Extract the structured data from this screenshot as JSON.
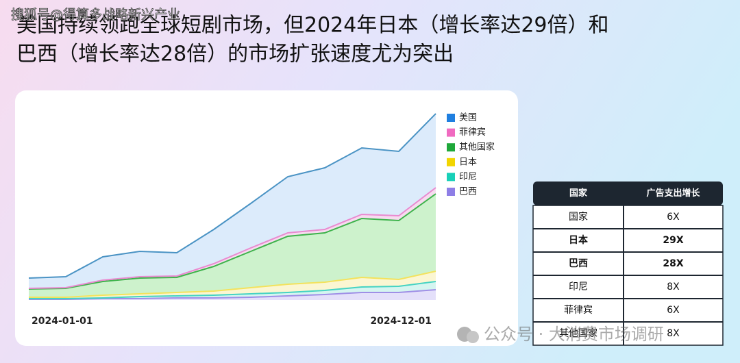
{
  "header": {
    "title": [
      "美国持续领跑全球短剧市场，但2024年日本（增长率达29倍）和",
      "巴西（增长率达28倍）的市场扩张速度尤为突出"
    ]
  },
  "watermark_top": "搜狐号@得算多战略新兴产业",
  "watermark_bottom": "公众号 · 大消费市场调研",
  "chart_data": {
    "type": "stacked-area",
    "categories": [
      "2024-01-01",
      null,
      null,
      null,
      null,
      null,
      null,
      null,
      null,
      null,
      null,
      "2024-12-01"
    ],
    "ylim": [
      0,
      280
    ],
    "series": [
      {
        "name": "美国",
        "color": "#1f7fe0",
        "line": "#4a93c4",
        "fill": "#dcebfb",
        "values": [
          15,
          16,
          34,
          37,
          34,
          50,
          65,
          82,
          90,
          97,
          94,
          108
        ]
      },
      {
        "name": "菲律宾",
        "color": "#f06ac0",
        "line": "#e98ad0",
        "fill": "#f6dcef",
        "values": [
          1,
          1,
          2,
          2,
          2,
          4,
          5,
          5,
          5,
          6,
          7,
          9
        ]
      },
      {
        "name": "其他国家",
        "color": "#1fa83a",
        "line": "#3db34b",
        "fill": "#cdf2cc",
        "values": [
          12,
          13,
          20,
          23,
          22,
          36,
          53,
          70,
          72,
          86,
          86,
          113
        ]
      },
      {
        "name": "日本",
        "color": "#f2d500",
        "line": "#f3e25c",
        "fill": "#fbf6d2",
        "values": [
          2,
          2,
          4,
          4,
          5,
          6,
          9,
          12,
          12,
          14,
          10,
          15
        ]
      },
      {
        "name": "印尼",
        "color": "#17d0b8",
        "line": "#45d3c3",
        "fill": "#d5f5f0",
        "values": [
          1,
          1,
          1,
          3,
          3,
          4,
          5,
          5,
          6,
          8,
          9,
          12
        ]
      },
      {
        "name": "巴西",
        "color": "#8e7ee6",
        "line": "#9f8fe6",
        "fill": "#e4e0fa",
        "values": [
          1,
          1,
          2,
          2,
          3,
          3,
          4,
          6,
          8,
          11,
          11,
          15
        ]
      }
    ]
  },
  "table": {
    "header": [
      "国家",
      "广告支出增长"
    ],
    "rows": [
      {
        "cells": [
          "国家",
          "6X"
        ],
        "bold": false
      },
      {
        "cells": [
          "日本",
          "29X"
        ],
        "bold": true
      },
      {
        "cells": [
          "巴西",
          "28X"
        ],
        "bold": true
      },
      {
        "cells": [
          "印尼",
          "8X"
        ],
        "bold": false
      },
      {
        "cells": [
          "菲律宾",
          "6X"
        ],
        "bold": false
      },
      {
        "cells": [
          "其他国家",
          "8X"
        ],
        "bold": false
      }
    ]
  }
}
